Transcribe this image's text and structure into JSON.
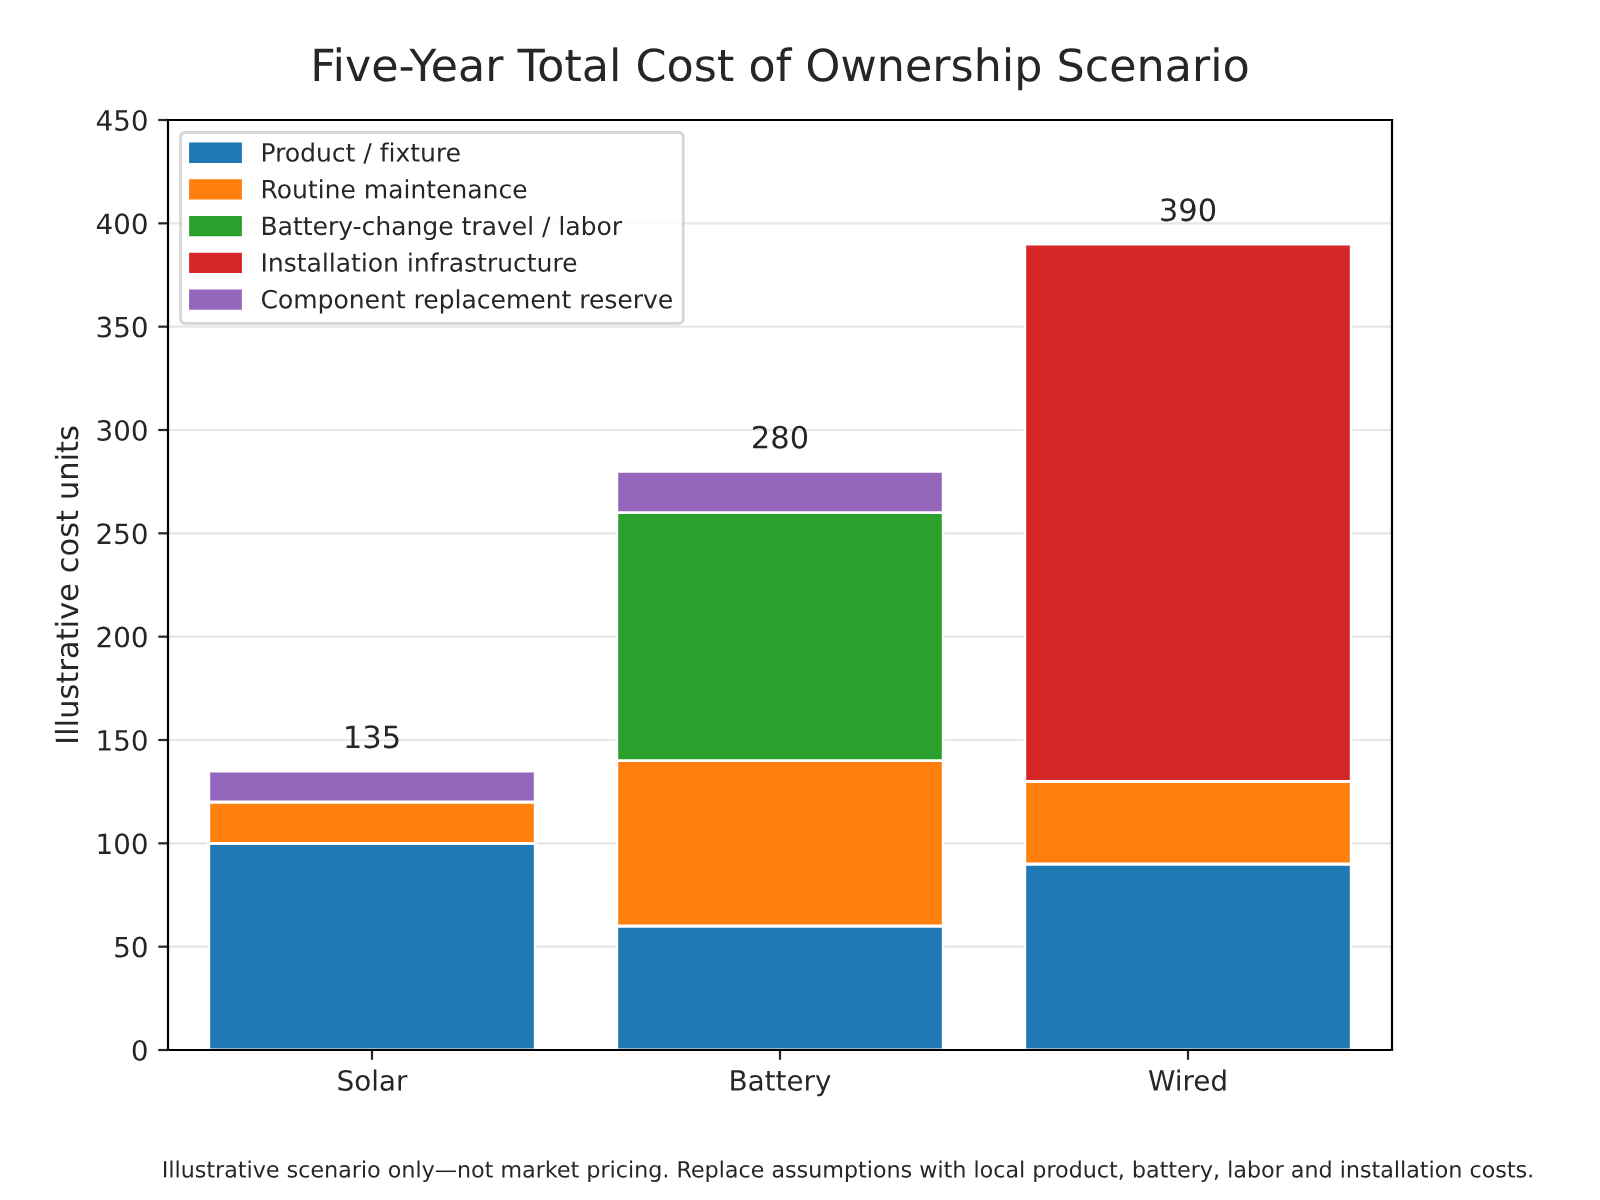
{
  "chart_data": {
    "type": "bar",
    "title": "Five-Year Total Cost of Ownership Scenario",
    "ylabel": "Illustrative cost units",
    "categories": [
      "Solar",
      "Battery",
      "Wired"
    ],
    "stacked": true,
    "series": [
      {
        "name": "Product / fixture",
        "color": "#1f77b4",
        "values": [
          100,
          60,
          90
        ]
      },
      {
        "name": "Routine maintenance",
        "color": "#ff7f0e",
        "values": [
          20,
          80,
          40
        ]
      },
      {
        "name": "Battery-change travel / labor",
        "color": "#2ca02c",
        "values": [
          null,
          120,
          null
        ]
      },
      {
        "name": "Installation infrastructure",
        "color": "#d62728",
        "values": [
          null,
          null,
          260
        ]
      },
      {
        "name": "Component replacement reserve",
        "color": "#9467bd",
        "values": [
          15,
          20,
          null
        ]
      }
    ],
    "totals": [
      "135",
      "280",
      "390"
    ],
    "ylim": [
      0,
      450
    ],
    "yticks": [
      0,
      50,
      100,
      150,
      200,
      250,
      300,
      350,
      400,
      450
    ],
    "grid": "y",
    "legend": "top left",
    "annotations": [
      "Illustrative scenario only—not market pricing. Replace assumptions with local product, battery, labor and installation costs."
    ]
  }
}
